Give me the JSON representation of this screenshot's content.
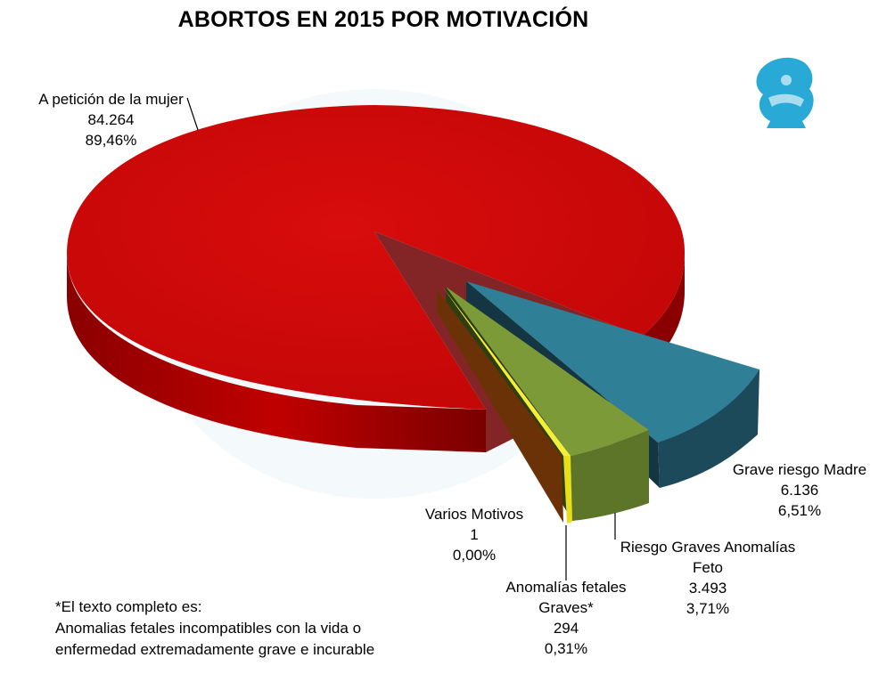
{
  "chart_data": {
    "type": "pie",
    "title": "ABORTOS EN 2015 POR MOTIVACIÓN",
    "slices": [
      {
        "label": "A petición de la mujer",
        "value_text": "84.264",
        "pct_text": "89,46%",
        "value": 84264,
        "pct": 89.46,
        "color": "#d40a0a"
      },
      {
        "label": "Grave riesgo Madre",
        "value_text": "6.136",
        "pct_text": "6,51%",
        "value": 6136,
        "pct": 6.51,
        "color": "#2f7f96"
      },
      {
        "label_lines": [
          "Riesgo Graves Anomalías",
          "Feto"
        ],
        "value_text": "3.493",
        "pct_text": "3,71%",
        "value": 3493,
        "pct": 3.71,
        "color": "#7c9a38"
      },
      {
        "label_lines": [
          "Anomalías fetales",
          "Graves*"
        ],
        "value_text": "294",
        "pct_text": "0,31%",
        "value": 294,
        "pct": 0.31,
        "color": "#e6df1a"
      },
      {
        "label": "Varios Motivos",
        "value_text": "1",
        "pct_text": "0,00%",
        "value": 1,
        "pct": 0.0,
        "color": "#7a3e0c"
      }
    ]
  },
  "footnote": {
    "line1": "*El texto completo es:",
    "line2": "Anomalias fetales incompatibles con la vida o",
    "line3": "enfermedad extremadamente grave e incurable"
  },
  "logo": {
    "icon": "eagle-emblem-icon",
    "color": "#29a9d6"
  }
}
